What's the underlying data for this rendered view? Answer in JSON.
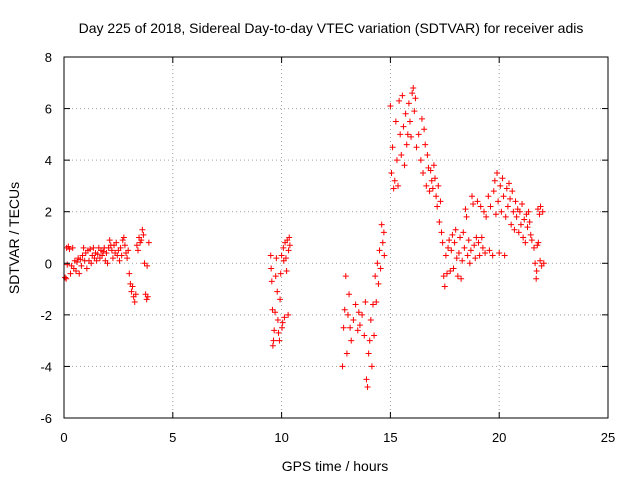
{
  "chart_data": {
    "type": "scatter",
    "title": "Day 225 of 2018, Sidereal Day-to-day VTEC variation (SDTVAR) for receiver adis",
    "xlabel": "GPS time / hours",
    "ylabel": "SDTVAR / TECUs",
    "xlim": [
      0,
      25
    ],
    "ylim": [
      -6,
      8
    ],
    "xticks": [
      0,
      5,
      10,
      15,
      20,
      25
    ],
    "yticks": [
      -6,
      -4,
      -2,
      0,
      2,
      4,
      6,
      8
    ],
    "grid": true,
    "marker": "+",
    "color": "#ff0000",
    "series": [
      {
        "name": "SDTVAR",
        "points": [
          [
            0.05,
            -0.55
          ],
          [
            0.1,
            -0.6
          ],
          [
            0.12,
            0.6
          ],
          [
            0.15,
            -0.05
          ],
          [
            0.2,
            0.65
          ],
          [
            0.25,
            0.55
          ],
          [
            0.3,
            -0.4
          ],
          [
            0.35,
            -0.1
          ],
          [
            0.4,
            0.6
          ],
          [
            0.45,
            -0.2
          ],
          [
            0.5,
            0.1
          ],
          [
            0.55,
            -0.3
          ],
          [
            0.6,
            0.05
          ],
          [
            0.65,
            0.2
          ],
          [
            0.7,
            -0.4
          ],
          [
            0.75,
            0.15
          ],
          [
            0.8,
            -0.1
          ],
          [
            0.85,
            0.3
          ],
          [
            0.9,
            0.6
          ],
          [
            0.95,
            0.1
          ],
          [
            1.0,
            0.4
          ],
          [
            1.05,
            -0.2
          ],
          [
            1.1,
            0.5
          ],
          [
            1.15,
            0.1
          ],
          [
            1.2,
            0.55
          ],
          [
            1.25,
            0.0
          ],
          [
            1.3,
            0.3
          ],
          [
            1.35,
            0.6
          ],
          [
            1.4,
            0.2
          ],
          [
            1.45,
            0.4
          ],
          [
            1.5,
            0.1
          ],
          [
            1.55,
            0.35
          ],
          [
            1.6,
            0.6
          ],
          [
            1.65,
            0.2
          ],
          [
            1.7,
            0.5
          ],
          [
            1.75,
            0.3
          ],
          [
            1.8,
            0.45
          ],
          [
            1.85,
            0.6
          ],
          [
            1.9,
            0.1
          ],
          [
            1.95,
            0.4
          ],
          [
            2.0,
            0.0
          ],
          [
            2.05,
            0.6
          ],
          [
            2.1,
            0.9
          ],
          [
            2.15,
            0.7
          ],
          [
            2.2,
            0.5
          ],
          [
            2.25,
            0.2
          ],
          [
            2.3,
            0.7
          ],
          [
            2.35,
            0.4
          ],
          [
            2.4,
            0.8
          ],
          [
            2.45,
            0.3
          ],
          [
            2.5,
            0.5
          ],
          [
            2.55,
            0.1
          ],
          [
            2.6,
            0.6
          ],
          [
            2.65,
            0.3
          ],
          [
            2.7,
            0.9
          ],
          [
            2.75,
            1.0
          ],
          [
            2.8,
            0.7
          ],
          [
            2.85,
            0.4
          ],
          [
            2.9,
            0.2
          ],
          [
            2.95,
            0.5
          ],
          [
            3.0,
            -0.4
          ],
          [
            3.05,
            -0.8
          ],
          [
            3.1,
            -1.1
          ],
          [
            3.15,
            -0.9
          ],
          [
            3.2,
            -1.3
          ],
          [
            3.25,
            -1.5
          ],
          [
            3.3,
            -1.2
          ],
          [
            3.35,
            0.7
          ],
          [
            3.4,
            0.5
          ],
          [
            3.45,
            1.0
          ],
          [
            3.5,
            0.8
          ],
          [
            3.55,
            0.9
          ],
          [
            3.6,
            1.3
          ],
          [
            3.65,
            1.1
          ],
          [
            3.7,
            0.0
          ],
          [
            3.75,
            -1.2
          ],
          [
            3.8,
            -1.4
          ],
          [
            3.82,
            -0.1
          ],
          [
            3.85,
            -1.3
          ],
          [
            3.9,
            0.8
          ],
          [
            9.5,
            0.3
          ],
          [
            9.52,
            -0.2
          ],
          [
            9.55,
            -0.7
          ],
          [
            9.58,
            -1.8
          ],
          [
            9.6,
            -3.2
          ],
          [
            9.63,
            -3.0
          ],
          [
            9.66,
            -2.6
          ],
          [
            9.7,
            -1.9
          ],
          [
            9.73,
            -0.5
          ],
          [
            9.76,
            0.2
          ],
          [
            9.8,
            -1.1
          ],
          [
            9.83,
            -2.2
          ],
          [
            9.86,
            -2.7
          ],
          [
            9.9,
            -3.0
          ],
          [
            9.93,
            -1.4
          ],
          [
            9.96,
            -0.4
          ],
          [
            10.0,
            0.3
          ],
          [
            10.02,
            -2.5
          ],
          [
            10.05,
            -2.3
          ],
          [
            10.08,
            0.6
          ],
          [
            10.1,
            0.1
          ],
          [
            10.13,
            -2.1
          ],
          [
            10.16,
            0.8
          ],
          [
            10.2,
            0.2
          ],
          [
            10.23,
            -0.3
          ],
          [
            10.26,
            0.9
          ],
          [
            10.3,
            -2.0
          ],
          [
            10.32,
            0.5
          ],
          [
            10.35,
            1.0
          ],
          [
            10.38,
            0.7
          ],
          [
            12.8,
            -4.0
          ],
          [
            12.85,
            -2.5
          ],
          [
            12.9,
            -1.8
          ],
          [
            12.95,
            -0.5
          ],
          [
            13.0,
            -3.5
          ],
          [
            13.05,
            -2.0
          ],
          [
            13.1,
            -1.2
          ],
          [
            13.15,
            -2.5
          ],
          [
            13.2,
            -3.0
          ],
          [
            13.3,
            -2.2
          ],
          [
            13.4,
            -1.6
          ],
          [
            13.5,
            -2.6
          ],
          [
            13.55,
            -1.9
          ],
          [
            13.6,
            -2.4
          ],
          [
            13.7,
            -2.0
          ],
          [
            13.8,
            -2.8
          ],
          [
            13.85,
            -1.5
          ],
          [
            13.9,
            -4.5
          ],
          [
            13.95,
            -4.8
          ],
          [
            14.0,
            -3.5
          ],
          [
            14.05,
            -3.0
          ],
          [
            14.1,
            -2.2
          ],
          [
            14.15,
            -4.0
          ],
          [
            14.2,
            -1.6
          ],
          [
            14.25,
            -2.8
          ],
          [
            14.3,
            -0.5
          ],
          [
            14.35,
            -1.5
          ],
          [
            14.4,
            0.0
          ],
          [
            14.45,
            -0.8
          ],
          [
            14.5,
            0.5
          ],
          [
            14.55,
            -0.2
          ],
          [
            14.6,
            1.5
          ],
          [
            14.65,
            0.8
          ],
          [
            14.7,
            1.2
          ],
          [
            14.72,
            0.3
          ],
          [
            15.0,
            6.1
          ],
          [
            15.05,
            3.5
          ],
          [
            15.1,
            4.5
          ],
          [
            15.15,
            2.9
          ],
          [
            15.2,
            3.2
          ],
          [
            15.25,
            5.5
          ],
          [
            15.3,
            4.0
          ],
          [
            15.35,
            3.0
          ],
          [
            15.4,
            6.3
          ],
          [
            15.45,
            5.0
          ],
          [
            15.5,
            4.2
          ],
          [
            15.55,
            6.5
          ],
          [
            15.6,
            5.3
          ],
          [
            15.65,
            3.8
          ],
          [
            15.7,
            5.8
          ],
          [
            15.75,
            4.6
          ],
          [
            15.8,
            5.0
          ],
          [
            15.85,
            6.2
          ],
          [
            15.9,
            5.5
          ],
          [
            15.95,
            4.9
          ],
          [
            16.0,
            6.6
          ],
          [
            16.05,
            6.8
          ],
          [
            16.1,
            5.9
          ],
          [
            16.15,
            6.4
          ],
          [
            16.2,
            4.5
          ],
          [
            16.3,
            5.0
          ],
          [
            16.4,
            4.0
          ],
          [
            16.45,
            5.6
          ],
          [
            16.5,
            3.5
          ],
          [
            16.55,
            5.2
          ],
          [
            16.6,
            4.6
          ],
          [
            16.65,
            3.0
          ],
          [
            16.7,
            4.2
          ],
          [
            16.75,
            3.7
          ],
          [
            16.8,
            2.8
          ],
          [
            16.85,
            3.6
          ],
          [
            16.9,
            3.2
          ],
          [
            16.95,
            2.9
          ],
          [
            17.0,
            3.8
          ],
          [
            17.05,
            3.3
          ],
          [
            17.1,
            2.6
          ],
          [
            17.15,
            2.2
          ],
          [
            17.2,
            3.0
          ],
          [
            17.25,
            1.6
          ],
          [
            17.3,
            2.4
          ],
          [
            17.35,
            1.2
          ],
          [
            17.4,
            0.8
          ],
          [
            17.45,
            -0.5
          ],
          [
            17.5,
            -0.9
          ],
          [
            17.55,
            0.3
          ],
          [
            17.6,
            -0.4
          ],
          [
            17.65,
            0.6
          ],
          [
            17.7,
            0.9
          ],
          [
            17.75,
            -0.3
          ],
          [
            17.8,
            0.5
          ],
          [
            17.85,
            1.1
          ],
          [
            17.9,
            -0.2
          ],
          [
            17.95,
            0.8
          ],
          [
            18.0,
            1.3
          ],
          [
            18.05,
            0.2
          ],
          [
            18.1,
            -0.5
          ],
          [
            18.15,
            0.4
          ],
          [
            18.2,
            1.0
          ],
          [
            18.25,
            -0.6
          ],
          [
            18.3,
            0.1
          ],
          [
            18.35,
            1.2
          ],
          [
            18.4,
            0.6
          ],
          [
            18.45,
            2.1
          ],
          [
            18.5,
            1.8
          ],
          [
            18.55,
            0.3
          ],
          [
            18.6,
            0.9
          ],
          [
            18.65,
            0.0
          ],
          [
            18.7,
            0.5
          ],
          [
            18.75,
            2.6
          ],
          [
            18.8,
            2.3
          ],
          [
            18.85,
            0.7
          ],
          [
            18.9,
            0.2
          ],
          [
            18.95,
            1.0
          ],
          [
            19.0,
            2.4
          ],
          [
            19.05,
            0.8
          ],
          [
            19.1,
            0.3
          ],
          [
            19.15,
            2.2
          ],
          [
            19.2,
            1.0
          ],
          [
            19.25,
            0.6
          ],
          [
            19.3,
            2.0
          ],
          [
            19.35,
            0.4
          ],
          [
            19.4,
            1.8
          ],
          [
            19.5,
            2.6
          ],
          [
            19.55,
            0.5
          ],
          [
            19.6,
            2.2
          ],
          [
            19.7,
            0.3
          ],
          [
            19.75,
            2.8
          ],
          [
            19.8,
            3.2
          ],
          [
            19.85,
            1.9
          ],
          [
            19.9,
            3.5
          ],
          [
            19.95,
            2.4
          ],
          [
            20.0,
            0.4
          ],
          [
            20.05,
            3.0
          ],
          [
            20.1,
            2.0
          ],
          [
            20.15,
            3.3
          ],
          [
            20.2,
            2.6
          ],
          [
            20.25,
            0.3
          ],
          [
            20.3,
            1.8
          ],
          [
            20.35,
            2.9
          ],
          [
            20.4,
            2.2
          ],
          [
            20.45,
            3.1
          ],
          [
            20.5,
            2.5
          ],
          [
            20.55,
            1.5
          ],
          [
            20.6,
            2.8
          ],
          [
            20.65,
            2.0
          ],
          [
            20.7,
            1.3
          ],
          [
            20.75,
            2.4
          ],
          [
            20.8,
            1.8
          ],
          [
            20.85,
            2.1
          ],
          [
            20.9,
            1.2
          ],
          [
            20.95,
            2.0
          ],
          [
            21.0,
            1.5
          ],
          [
            21.05,
            2.3
          ],
          [
            21.1,
            1.0
          ],
          [
            21.15,
            1.7
          ],
          [
            21.2,
            0.8
          ],
          [
            21.25,
            1.9
          ],
          [
            21.3,
            1.4
          ],
          [
            21.35,
            2.0
          ],
          [
            21.4,
            1.6
          ],
          [
            21.45,
            1.1
          ],
          [
            21.5,
            0.9
          ],
          [
            21.6,
            0.6
          ],
          [
            21.65,
            0.0
          ],
          [
            21.7,
            -0.6
          ],
          [
            21.72,
            -0.3
          ],
          [
            21.75,
            0.7
          ],
          [
            21.78,
            2.1
          ],
          [
            21.8,
            0.8
          ],
          [
            21.85,
            1.9
          ],
          [
            21.88,
            0.1
          ],
          [
            21.9,
            2.2
          ],
          [
            21.95,
            -0.1
          ],
          [
            22.0,
            2.0
          ],
          [
            22.05,
            0.0
          ]
        ]
      }
    ]
  }
}
